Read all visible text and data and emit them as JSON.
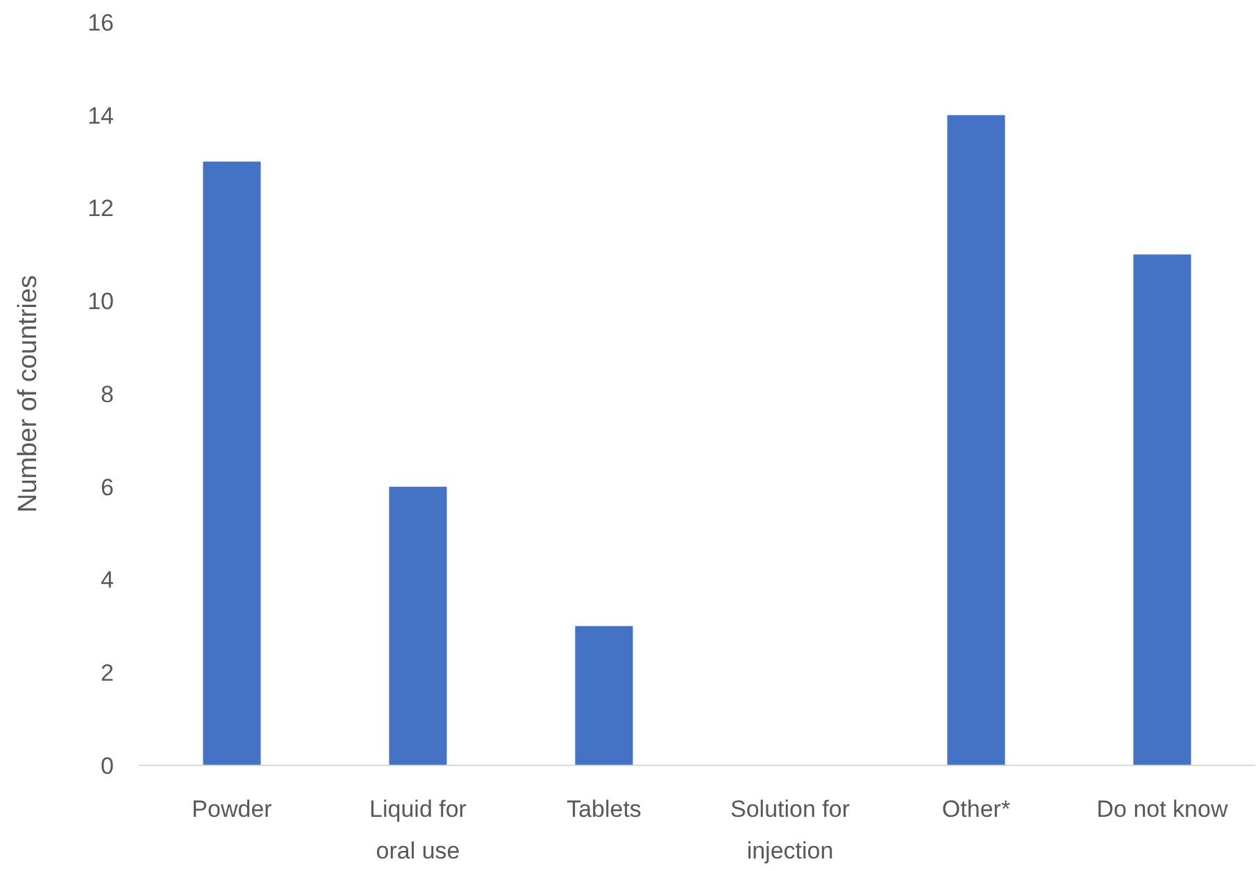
{
  "chart_data": {
    "type": "bar",
    "ylabel": "Number of countries",
    "categories": [
      "Powder",
      "Liquid for oral use",
      "Tablets",
      "Solution for injection",
      "Other*",
      "Do not know"
    ],
    "values": [
      13,
      6,
      3,
      0,
      14,
      11
    ],
    "color": "#4472c4",
    "ylim": [
      0,
      16
    ],
    "yticks": [
      0,
      2,
      4,
      6,
      8,
      10,
      12,
      14,
      16
    ],
    "grid": false
  }
}
